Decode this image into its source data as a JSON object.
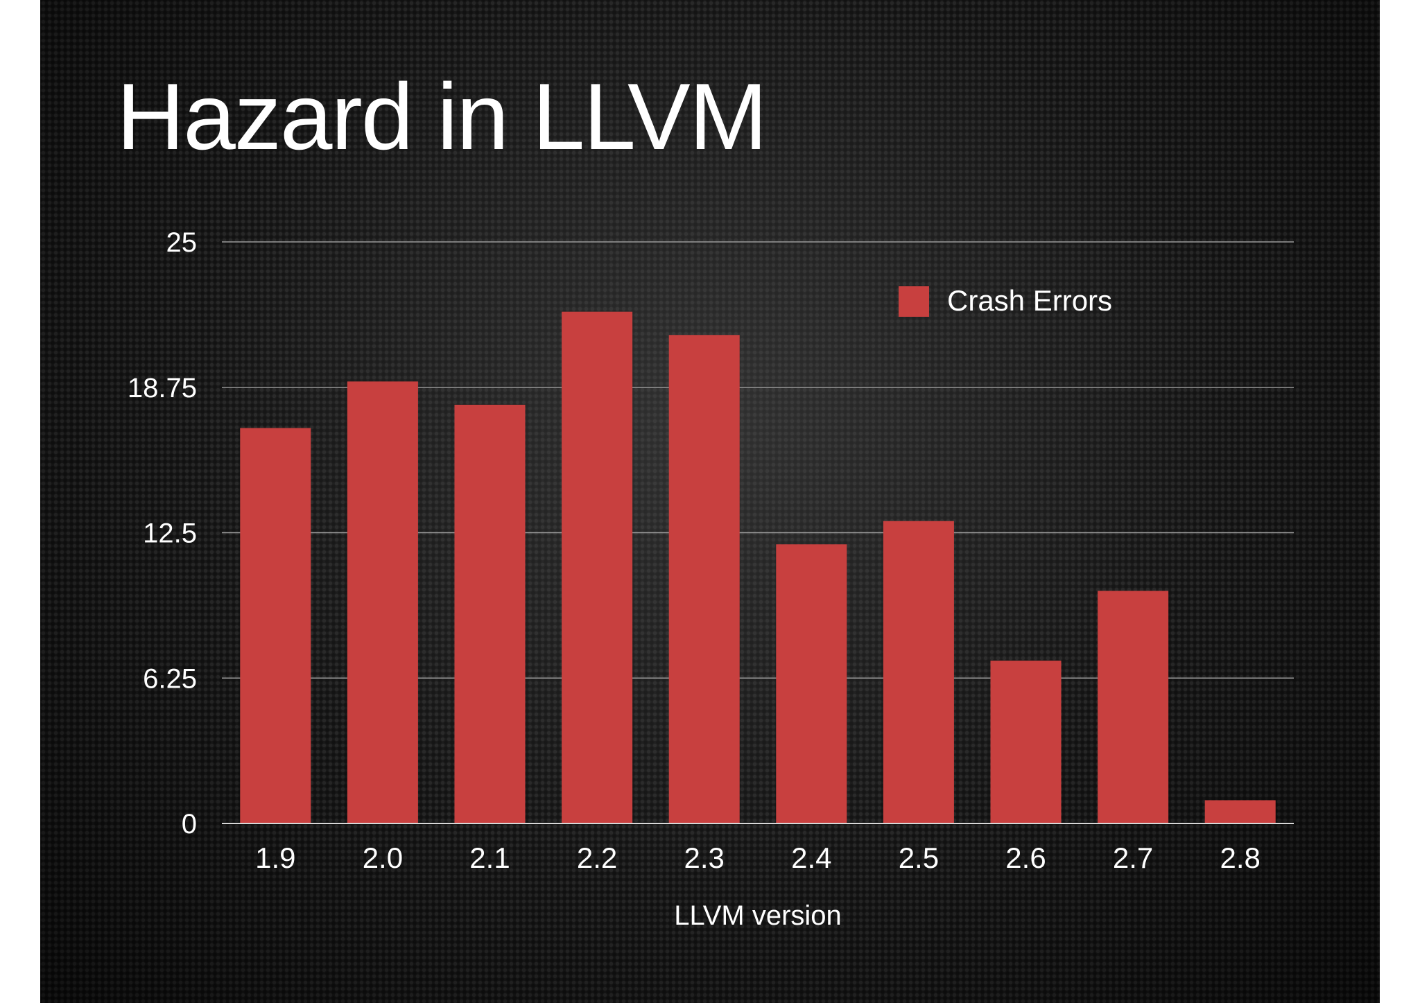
{
  "slide": {
    "title": "Hazard in LLVM"
  },
  "chart_data": {
    "type": "bar",
    "title": "",
    "xlabel": "LLVM version",
    "ylabel": "",
    "categories": [
      "1.9",
      "2.0",
      "2.1",
      "2.2",
      "2.3",
      "2.4",
      "2.5",
      "2.6",
      "2.7",
      "2.8"
    ],
    "series": [
      {
        "name": "Crash Errors",
        "color": "#c8403f",
        "values": [
          17,
          19,
          18,
          22,
          21,
          12,
          13,
          7,
          10,
          1
        ]
      }
    ],
    "ylim": [
      0,
      25
    ],
    "yticks": [
      "0",
      "6.25",
      "12.5",
      "18.75",
      "25"
    ],
    "grid": true,
    "legend_position": "top-right"
  }
}
